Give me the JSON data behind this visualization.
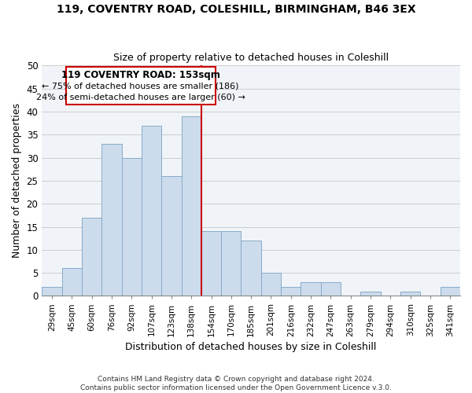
{
  "title": "119, COVENTRY ROAD, COLESHILL, BIRMINGHAM, B46 3EX",
  "subtitle": "Size of property relative to detached houses in Coleshill",
  "xlabel": "Distribution of detached houses by size in Coleshill",
  "ylabel": "Number of detached properties",
  "footer_lines": [
    "Contains HM Land Registry data © Crown copyright and database right 2024.",
    "Contains public sector information licensed under the Open Government Licence v.3.0."
  ],
  "bin_labels": [
    "29sqm",
    "45sqm",
    "60sqm",
    "76sqm",
    "92sqm",
    "107sqm",
    "123sqm",
    "138sqm",
    "154sqm",
    "170sqm",
    "185sqm",
    "201sqm",
    "216sqm",
    "232sqm",
    "247sqm",
    "263sqm",
    "279sqm",
    "294sqm",
    "310sqm",
    "325sqm",
    "341sqm"
  ],
  "bar_heights": [
    2,
    6,
    17,
    33,
    30,
    37,
    26,
    39,
    14,
    14,
    12,
    5,
    2,
    3,
    3,
    0,
    1,
    0,
    1,
    0,
    2
  ],
  "bar_color": "#ccdcec",
  "bar_edge_color": "#88aac8",
  "vline_x_idx": 8,
  "vline_color": "#cc0000",
  "annotation_title": "119 COVENTRY ROAD: 153sqm",
  "annotation_line1": "← 75% of detached houses are smaller (186)",
  "annotation_line2": "24% of semi-detached houses are larger (60) →",
  "annotation_box_color": "#ffffff",
  "annotation_box_edge": "#cc0000",
  "ylim": [
    0,
    50
  ],
  "yticks": [
    0,
    5,
    10,
    15,
    20,
    25,
    30,
    35,
    40,
    45,
    50
  ],
  "grid_color": "#cccccc",
  "background_color": "#f0f4f8",
  "plot_bg_color": "#f0f4f8"
}
